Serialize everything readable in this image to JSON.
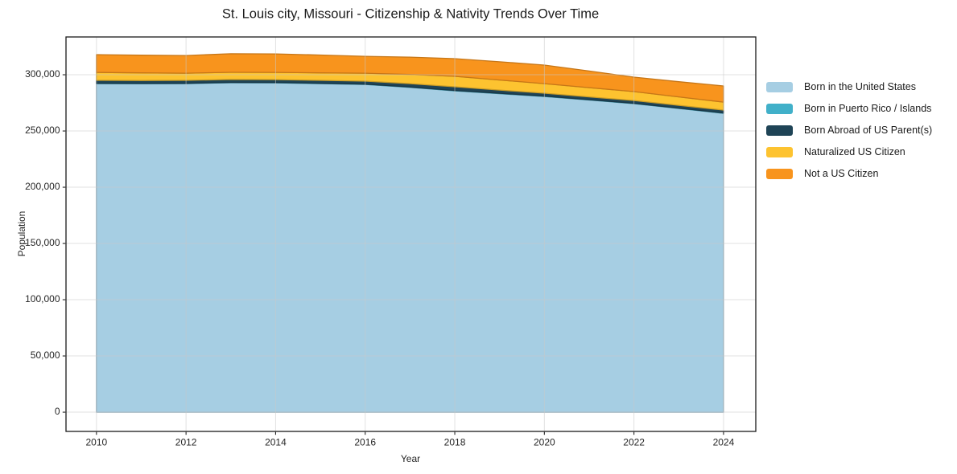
{
  "chart_data": {
    "type": "area",
    "stacked": true,
    "title": "St. Louis city, Missouri - Citizenship & Nativity Trends Over Time",
    "xlabel": "Year",
    "ylabel": "Population",
    "x": [
      2010,
      2011,
      2012,
      2013,
      2014,
      2015,
      2016,
      2017,
      2018,
      2019,
      2020,
      2021,
      2022,
      2023,
      2024
    ],
    "series": [
      {
        "name": "Born in the United States",
        "color": "#a6cee3",
        "values": [
          292100,
          292000,
          292100,
          292900,
          292800,
          292100,
          291400,
          288800,
          285700,
          283200,
          280700,
          277500,
          274300,
          270000,
          265700
        ]
      },
      {
        "name": "Born in Puerto Rico / Islands",
        "color": "#41b0c9",
        "values": [
          300,
          300,
          300,
          300,
          300,
          300,
          300,
          300,
          300,
          300,
          300,
          300,
          300,
          300,
          300
        ]
      },
      {
        "name": "Born Abroad of US Parent(s)",
        "color": "#1f4456",
        "values": [
          2600,
          2600,
          2600,
          2600,
          2600,
          2600,
          2600,
          3000,
          3300,
          2900,
          2600,
          2500,
          2500,
          2500,
          2600
        ]
      },
      {
        "name": "Naturalized US Citizen",
        "color": "#fdc330",
        "values": [
          7100,
          6800,
          6400,
          6400,
          6400,
          6700,
          7100,
          8200,
          9300,
          8900,
          8500,
          8200,
          7900,
          7500,
          7100
        ]
      },
      {
        "name": "Not a US Citizen",
        "color": "#f8941d",
        "values": [
          15800,
          15700,
          15700,
          16500,
          16400,
          15800,
          15000,
          15400,
          15700,
          16200,
          16500,
          14800,
          12900,
          13500,
          14300
        ]
      }
    ],
    "xticks": [
      2010,
      2012,
      2014,
      2016,
      2018,
      2020,
      2022,
      2024
    ],
    "xtick_labels": [
      "2010",
      "2012",
      "2014",
      "2016",
      "2018",
      "2020",
      "2022",
      "2024"
    ],
    "yticks": [
      0,
      50000,
      100000,
      150000,
      200000,
      250000,
      300000
    ],
    "ytick_labels": [
      "0",
      "50,000",
      "100,000",
      "150,000",
      "200,000",
      "250,000",
      "300,000"
    ],
    "xlim": [
      2009.32,
      2024.72
    ],
    "ylim": [
      -17100,
      333600
    ],
    "grid": true,
    "grid_color": "#c9c9c9",
    "grid_opacity": 0.55,
    "spine_color": "#1a1a1a",
    "tick_color": "#262626",
    "legend_position": "right"
  }
}
